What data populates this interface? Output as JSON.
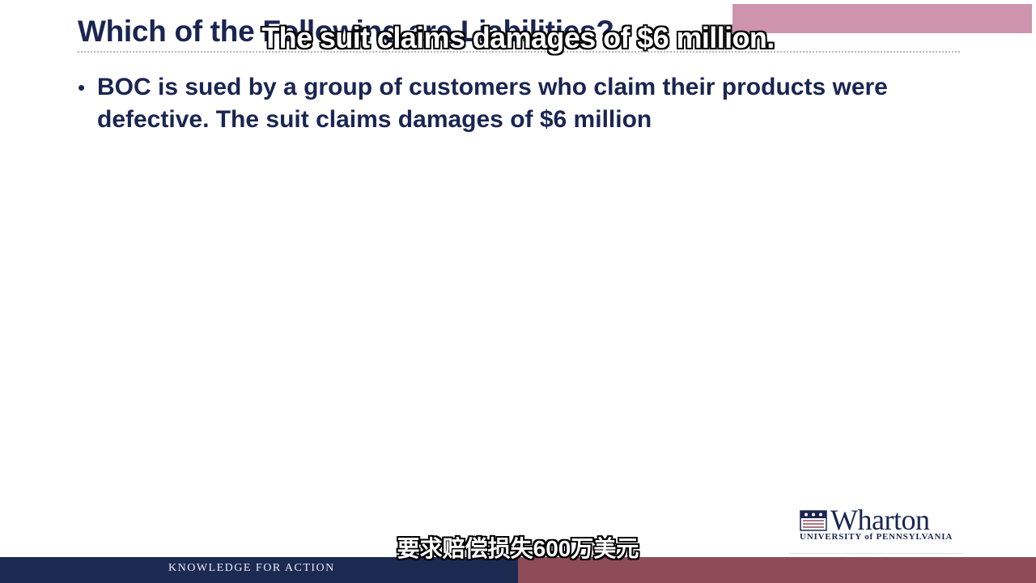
{
  "slide": {
    "title": "Which of the Following are Liabilities?",
    "bullets": [
      "BOC is sued by a group of customers who claim their products were defective.  The suit claims damages of $6 million"
    ]
  },
  "overlay": {
    "watermark_text": "",
    "subtitle_en": "The suit claims damages of $6 million.",
    "subtitle_zh": "要求赔偿损失600万美元"
  },
  "branding": {
    "logo_name": "Wharton",
    "logo_subtitle": "UNIVERSITY of PENNSYLVANIA",
    "footer_tagline": "KNOWLEDGE FOR ACTION"
  },
  "colors": {
    "title_navy": "#1a2551",
    "footer_navy": "#1c2a52",
    "footer_maroon": "#8e4c59",
    "watermark_pink": "#c98aa8"
  },
  "icons": [
    "penn-shield-icon",
    "bullet-dot-icon"
  ]
}
